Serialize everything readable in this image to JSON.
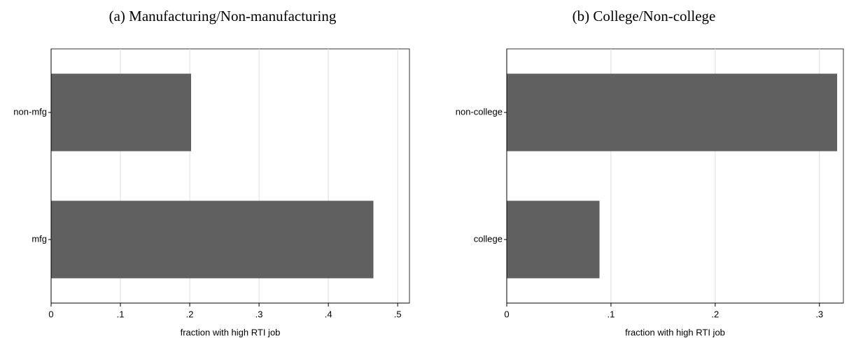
{
  "chart_data": [
    {
      "type": "bar",
      "orientation": "horizontal",
      "title": "(a) Manufacturing/Non-manufacturing",
      "categories": [
        "non-mfg",
        "mfg"
      ],
      "values": [
        0.202,
        0.465
      ],
      "color": "#606060",
      "xlabel": "fraction with high RTI job",
      "xlim": [
        0,
        0.517
      ],
      "xticks": [
        0,
        {
          "value": 0.1,
          "label": ".1"
        },
        {
          "value": 0.2,
          "label": ".2"
        },
        {
          "value": 0.3,
          "label": ".3"
        },
        {
          "value": 0.4,
          "label": ".4"
        },
        {
          "value": 0.5,
          "label": ".5"
        }
      ],
      "grid": true
    },
    {
      "type": "bar",
      "orientation": "horizontal",
      "title": "(b) College/Non-college",
      "categories": [
        "non-college",
        "college"
      ],
      "values": [
        0.317,
        0.089
      ],
      "color": "#606060",
      "xlabel": "fraction with high RTI job",
      "xlim": [
        0,
        0.323
      ],
      "xticks": [
        0,
        {
          "value": 0.1,
          "label": ".1"
        },
        {
          "value": 0.2,
          "label": ".2"
        },
        {
          "value": 0.3,
          "label": ".3"
        }
      ],
      "grid": true
    }
  ]
}
